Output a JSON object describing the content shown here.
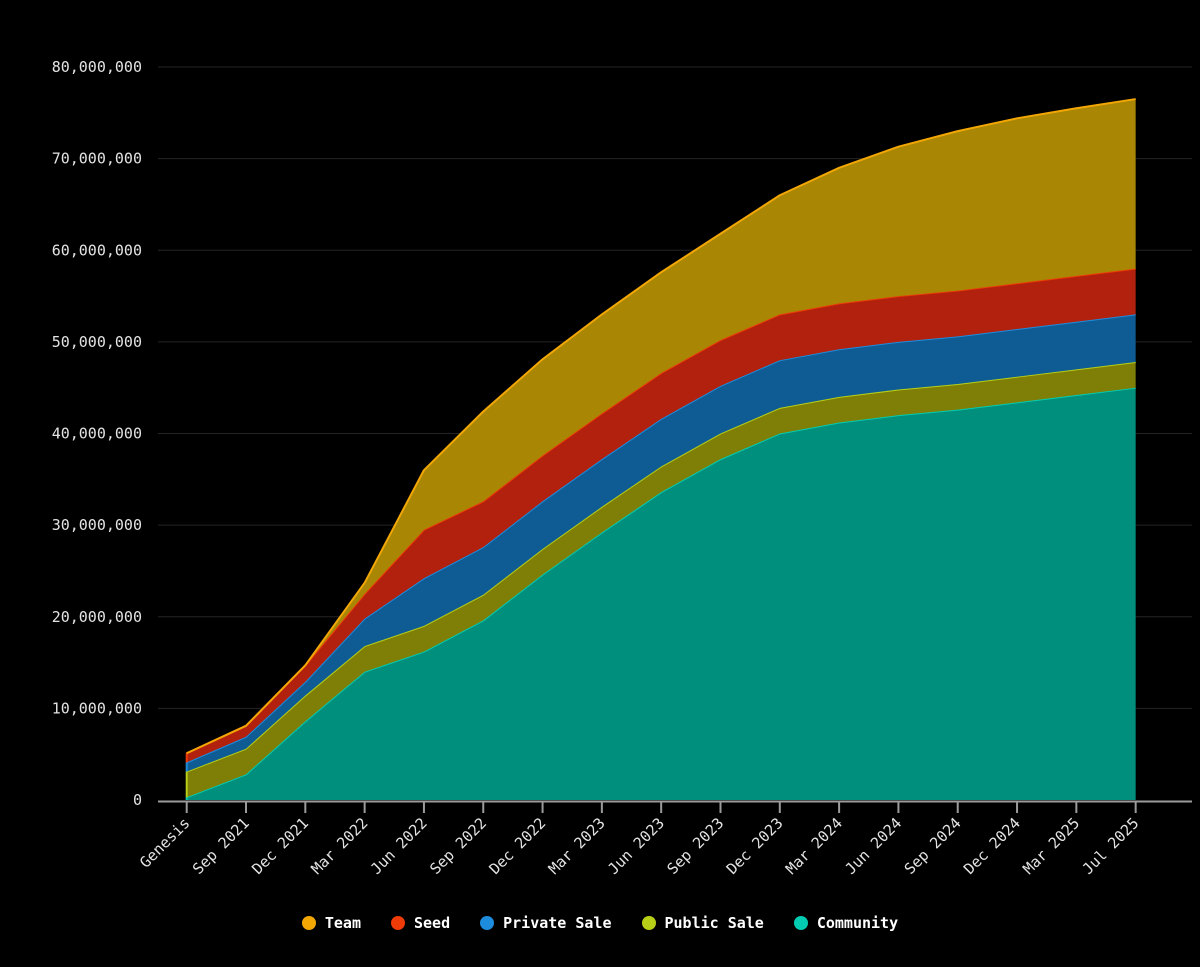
{
  "page": {
    "background": "#000000",
    "title": ""
  },
  "chart_data": {
    "type": "area",
    "stacked": true,
    "title": "",
    "xlabel": "",
    "ylabel": "",
    "grid": true,
    "background": "#000000",
    "categories": [
      "Genesis",
      "Sep 2021",
      "Dec 2021",
      "Mar 2022",
      "Jun 2022",
      "Sep 2022",
      "Dec 2022",
      "Mar 2023",
      "Jun 2023",
      "Sep 2023",
      "Dec 2023",
      "Mar 2024",
      "Jun 2024",
      "Sep 2024",
      "Dec 2024",
      "Mar 2025",
      "Jul 2025"
    ],
    "series": [
      {
        "name": "Community",
        "legend_color": "#00ccb2",
        "fill_color": "#008f7d",
        "values": [
          300000,
          2800000,
          8600000,
          14000000,
          16200000,
          19600000,
          24600000,
          29200000,
          33600000,
          37200000,
          40000000,
          41200000,
          42000000,
          42600000,
          43400000,
          44200000,
          45000000
        ]
      },
      {
        "name": "Public Sale",
        "legend_color": "#b7cf16",
        "fill_color": "#7f7e06",
        "values": [
          2800000,
          2800000,
          2800000,
          2800000,
          2800000,
          2800000,
          2800000,
          2800000,
          2800000,
          2800000,
          2800000,
          2800000,
          2800000,
          2800000,
          2800000,
          2800000,
          2800000
        ]
      },
      {
        "name": "Private Sale",
        "legend_color": "#1d8cdd",
        "fill_color": "#0f5c95",
        "values": [
          1000000,
          1300000,
          1500000,
          3000000,
          5200000,
          5200000,
          5200000,
          5200000,
          5200000,
          5200000,
          5200000,
          5200000,
          5200000,
          5200000,
          5200000,
          5200000,
          5200000
        ]
      },
      {
        "name": "Seed",
        "legend_color": "#ee3b07",
        "fill_color": "#b2210d",
        "values": [
          1000000,
          1200000,
          1800000,
          2700000,
          5300000,
          5000000,
          5000000,
          5000000,
          5000000,
          5000000,
          5000000,
          5000000,
          5000000,
          5000000,
          5000000,
          5000000,
          5000000
        ]
      },
      {
        "name": "Team",
        "legend_color": "#f2a705",
        "fill_color": "#a98604",
        "values": [
          0,
          0,
          0,
          1200000,
          6500000,
          9800000,
          10500000,
          10800000,
          11000000,
          11600000,
          13000000,
          14800000,
          16300000,
          17400000,
          18000000,
          18300000,
          18500000
        ]
      }
    ],
    "stack_order": "first-series-at-bottom",
    "y_axis": {
      "min": 0,
      "max": 80000000,
      "tick_step": 10000000,
      "tick_labels": [
        "0",
        "10,000,000",
        "20,000,000",
        "30,000,000",
        "40,000,000",
        "50,000,000",
        "60,000,000",
        "70,000,000",
        "80,000,000"
      ]
    },
    "legend": {
      "position": "bottom",
      "items": [
        "Team",
        "Seed",
        "Private Sale",
        "Public Sale",
        "Community"
      ]
    },
    "colors": {
      "axis_line": "#9b9b9b",
      "tick_mark": "#9b9b9b",
      "grid_line": "#242424",
      "axis_text": "#e3e3e3",
      "legend_text": "#ffffff"
    }
  }
}
